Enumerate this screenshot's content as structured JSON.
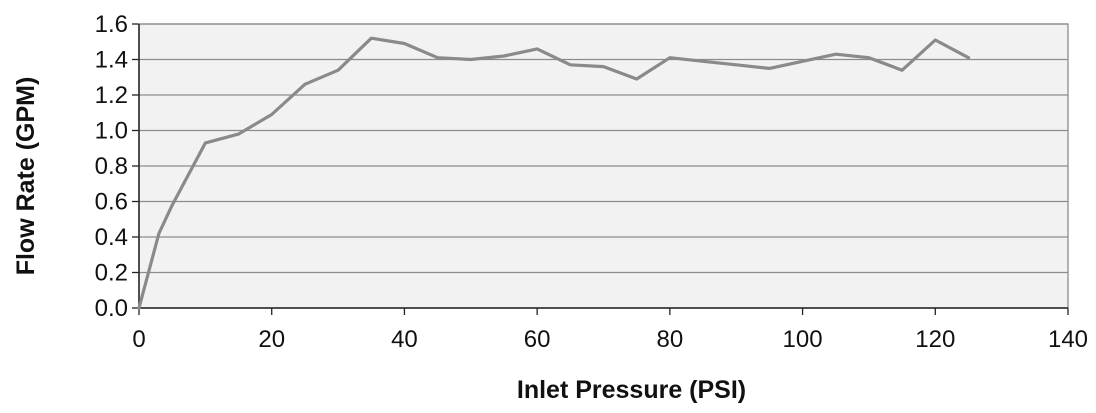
{
  "chart_data": {
    "type": "line",
    "title": "",
    "xlabel": "Inlet Pressure (PSI)",
    "ylabel": "Flow Rate (GPM)",
    "xlim": [
      0,
      140
    ],
    "ylim": [
      0,
      1.6
    ],
    "x_ticks": [
      "0",
      "20",
      "40",
      "60",
      "80",
      "100",
      "120",
      "140"
    ],
    "y_ticks": [
      "0.0",
      "0.2",
      "0.4",
      "0.6",
      "0.8",
      "1.0",
      "1.2",
      "1.4",
      "1.6"
    ],
    "grid": "horizontal",
    "legend": "none",
    "series": [
      {
        "x": [
          0,
          3,
          5,
          10,
          15,
          20,
          25,
          30,
          35,
          40,
          45,
          50,
          55,
          60,
          65,
          70,
          75,
          80,
          85,
          90,
          95,
          100,
          105,
          110,
          115,
          120,
          125
        ],
        "y": [
          0.0,
          0.42,
          0.58,
          0.93,
          0.98,
          1.09,
          1.26,
          1.34,
          1.52,
          1.49,
          1.41,
          1.4,
          1.42,
          1.46,
          1.37,
          1.36,
          1.29,
          1.41,
          1.39,
          1.37,
          1.35,
          1.39,
          1.43,
          1.41,
          1.34,
          1.51,
          1.41
        ]
      }
    ],
    "colors": {
      "plot_background": "#f2f2f2",
      "gridline": "#8c8c8c",
      "line": "#8a8a8a",
      "axis": "#222222"
    }
  }
}
